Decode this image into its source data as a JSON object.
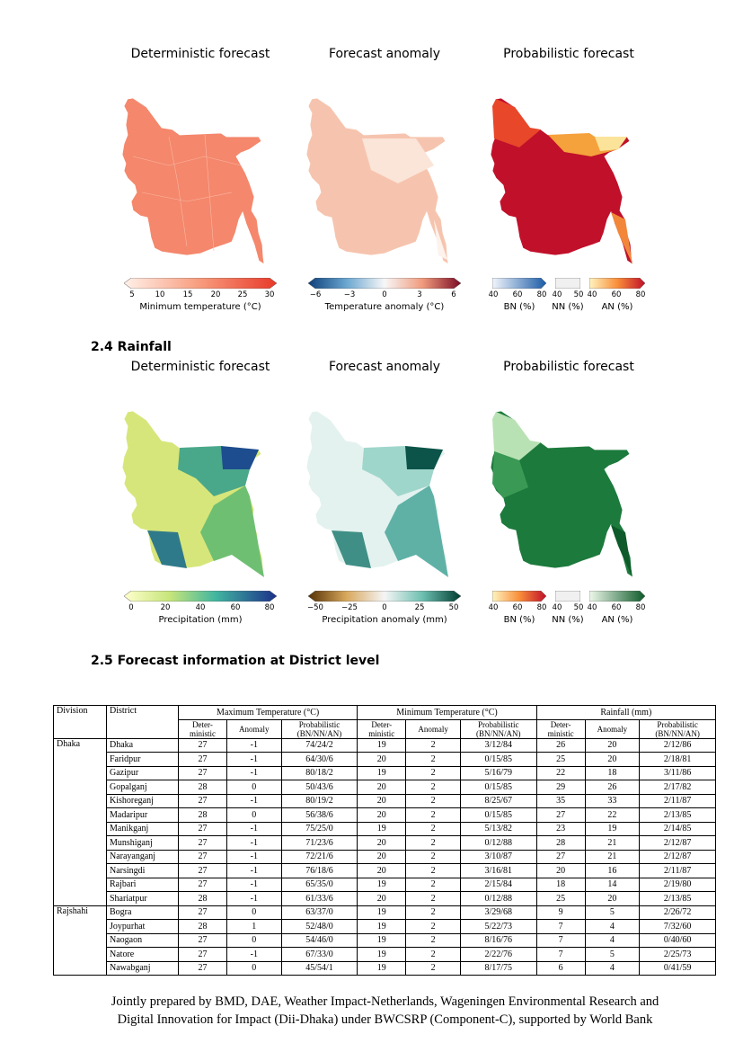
{
  "temperature_panels": {
    "deterministic": {
      "title": "Deterministic forecast",
      "colorbar_label": "Minimum temperature (°C)",
      "ticks": [
        "5",
        "10",
        "15",
        "20",
        "25",
        "30"
      ]
    },
    "anomaly": {
      "title": "Forecast anomaly",
      "colorbar_label": "Temperature anomaly (°C)",
      "ticks": [
        "−6",
        "−3",
        "0",
        "3",
        "6"
      ]
    },
    "probabilistic": {
      "title": "Probabilistic forecast",
      "bn_label": "BN (%)",
      "nn_label": "NN (%)",
      "an_label": "AN (%)",
      "bn_ticks": [
        "40",
        "60",
        "80"
      ],
      "nn_ticks": [
        "40",
        "50"
      ],
      "an_ticks": [
        "40",
        "60",
        "80"
      ]
    }
  },
  "rainfall_section": {
    "heading": "2.4 Rainfall"
  },
  "rainfall_panels": {
    "deterministic": {
      "title": "Deterministic forecast",
      "colorbar_label": "Precipitation (mm)",
      "ticks": [
        "0",
        "20",
        "40",
        "60",
        "80"
      ]
    },
    "anomaly": {
      "title": "Forecast anomaly",
      "colorbar_label": "Precipitation anomaly (mm)",
      "ticks": [
        "−50",
        "−25",
        "0",
        "25",
        "50"
      ]
    },
    "probabilistic": {
      "title": "Probabilistic forecast",
      "bn_label": "BN (%)",
      "nn_label": "NN (%)",
      "an_label": "AN (%)",
      "bn_ticks": [
        "40",
        "60",
        "80"
      ],
      "nn_ticks": [
        "40",
        "50"
      ],
      "an_ticks": [
        "40",
        "60",
        "80"
      ]
    }
  },
  "district_section": {
    "heading": "2.5 Forecast information at District level"
  },
  "table": {
    "division_header": "Division",
    "district_header": "District",
    "group_headers": [
      "Maximum Temperature (°C)",
      "Minimum Temperature (°C)",
      "Rainfall (mm)"
    ],
    "sub_headers": [
      "Deter-\nministic",
      "Anomaly",
      "Probabilistic\n(BN/NN/AN)"
    ],
    "groups": [
      {
        "division": "Dhaka",
        "rows": [
          [
            "Dhaka",
            "27",
            "-1",
            "74/24/2",
            "19",
            "2",
            "3/12/84",
            "26",
            "20",
            "2/12/86"
          ],
          [
            "Faridpur",
            "27",
            "-1",
            "64/30/6",
            "20",
            "2",
            "0/15/85",
            "25",
            "20",
            "2/18/81"
          ],
          [
            "Gazipur",
            "27",
            "-1",
            "80/18/2",
            "19",
            "2",
            "5/16/79",
            "22",
            "18",
            "3/11/86"
          ],
          [
            "Gopalganj",
            "28",
            "0",
            "50/43/6",
            "20",
            "2",
            "0/15/85",
            "29",
            "26",
            "2/17/82"
          ],
          [
            "Kishoreganj",
            "27",
            "-1",
            "80/19/2",
            "20",
            "2",
            "8/25/67",
            "35",
            "33",
            "2/11/87"
          ],
          [
            "Madaripur",
            "28",
            "0",
            "56/38/6",
            "20",
            "2",
            "0/15/85",
            "27",
            "22",
            "2/13/85"
          ],
          [
            "Manikganj",
            "27",
            "-1",
            "75/25/0",
            "19",
            "2",
            "5/13/82",
            "23",
            "19",
            "2/14/85"
          ],
          [
            "Munshiganj",
            "27",
            "-1",
            "71/23/6",
            "20",
            "2",
            "0/12/88",
            "28",
            "21",
            "2/12/87"
          ],
          [
            "Narayanganj",
            "27",
            "-1",
            "72/21/6",
            "20",
            "2",
            "3/10/87",
            "27",
            "21",
            "2/12/87"
          ],
          [
            "Narsingdi",
            "27",
            "-1",
            "76/18/6",
            "20",
            "2",
            "3/16/81",
            "20",
            "16",
            "2/11/87"
          ],
          [
            "Rajbari",
            "27",
            "-1",
            "65/35/0",
            "19",
            "2",
            "2/15/84",
            "18",
            "14",
            "2/19/80"
          ],
          [
            "Shariatpur",
            "28",
            "-1",
            "61/33/6",
            "20",
            "2",
            "0/12/88",
            "25",
            "20",
            "2/13/85"
          ]
        ]
      },
      {
        "division": "Rajshahi",
        "rows": [
          [
            "Bogra",
            "27",
            "0",
            "63/37/0",
            "19",
            "2",
            "3/29/68",
            "9",
            "5",
            "2/26/72"
          ],
          [
            "Joypurhat",
            "28",
            "1",
            "52/48/0",
            "19",
            "2",
            "5/22/73",
            "7",
            "4",
            "7/32/60"
          ],
          [
            "Naogaon",
            "27",
            "0",
            "54/46/0",
            "19",
            "2",
            "8/16/76",
            "7",
            "4",
            "0/40/60"
          ],
          [
            "Natore",
            "27",
            "-1",
            "67/33/0",
            "19",
            "2",
            "2/22/76",
            "7",
            "5",
            "2/25/73"
          ],
          [
            "Nawabganj",
            "27",
            "0",
            "45/54/1",
            "19",
            "2",
            "8/17/75",
            "6",
            "4",
            "0/41/59"
          ]
        ]
      }
    ]
  },
  "footer": {
    "line1": "Jointly prepared by BMD, DAE, Weather Impact-Netherlands, Wageningen Environmental Research and",
    "line2": "Digital Innovation for Impact (Dii-Dhaka) under BWCSRP (Component-C), supported by World Bank"
  },
  "colors": {
    "temp_det": "#f4876c",
    "temp_anom": "#f7c8b3",
    "temp_prob": "#c0102a",
    "rain_det": "#8fc97a",
    "rain_anom": "#7fc3ba",
    "rain_prob": "#1c7a3c"
  }
}
